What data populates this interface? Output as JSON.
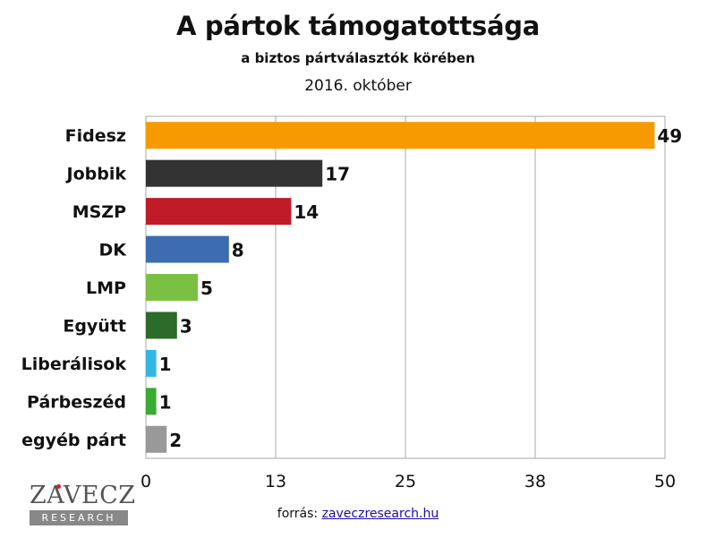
{
  "title": "A pártok támogatottsága",
  "subtitle": "a biztos pártválasztók körében",
  "date": "2016. október",
  "source": {
    "label": "forrás:",
    "link": "zaveczresearch.hu"
  },
  "logo": {
    "name": "ZAVECZ",
    "sub": "RESEARCH"
  },
  "chart_data": {
    "type": "bar",
    "orientation": "horizontal",
    "categories": [
      "Fidesz",
      "Jobbik",
      "MSZP",
      "DK",
      "LMP",
      "Együtt",
      "Liberálisok",
      "Párbeszéd",
      "egyéb párt"
    ],
    "values": [
      49,
      17,
      14,
      8,
      5,
      3,
      1,
      1,
      2
    ],
    "colors": [
      "#f59a00",
      "#333333",
      "#c01b28",
      "#3d6db0",
      "#7ac143",
      "#2d6b2a",
      "#33b5e5",
      "#3aaa35",
      "#999999"
    ],
    "xlim": [
      0,
      50
    ],
    "xticks": [
      "0",
      "13",
      "25",
      "38",
      "50"
    ],
    "grid": true
  }
}
